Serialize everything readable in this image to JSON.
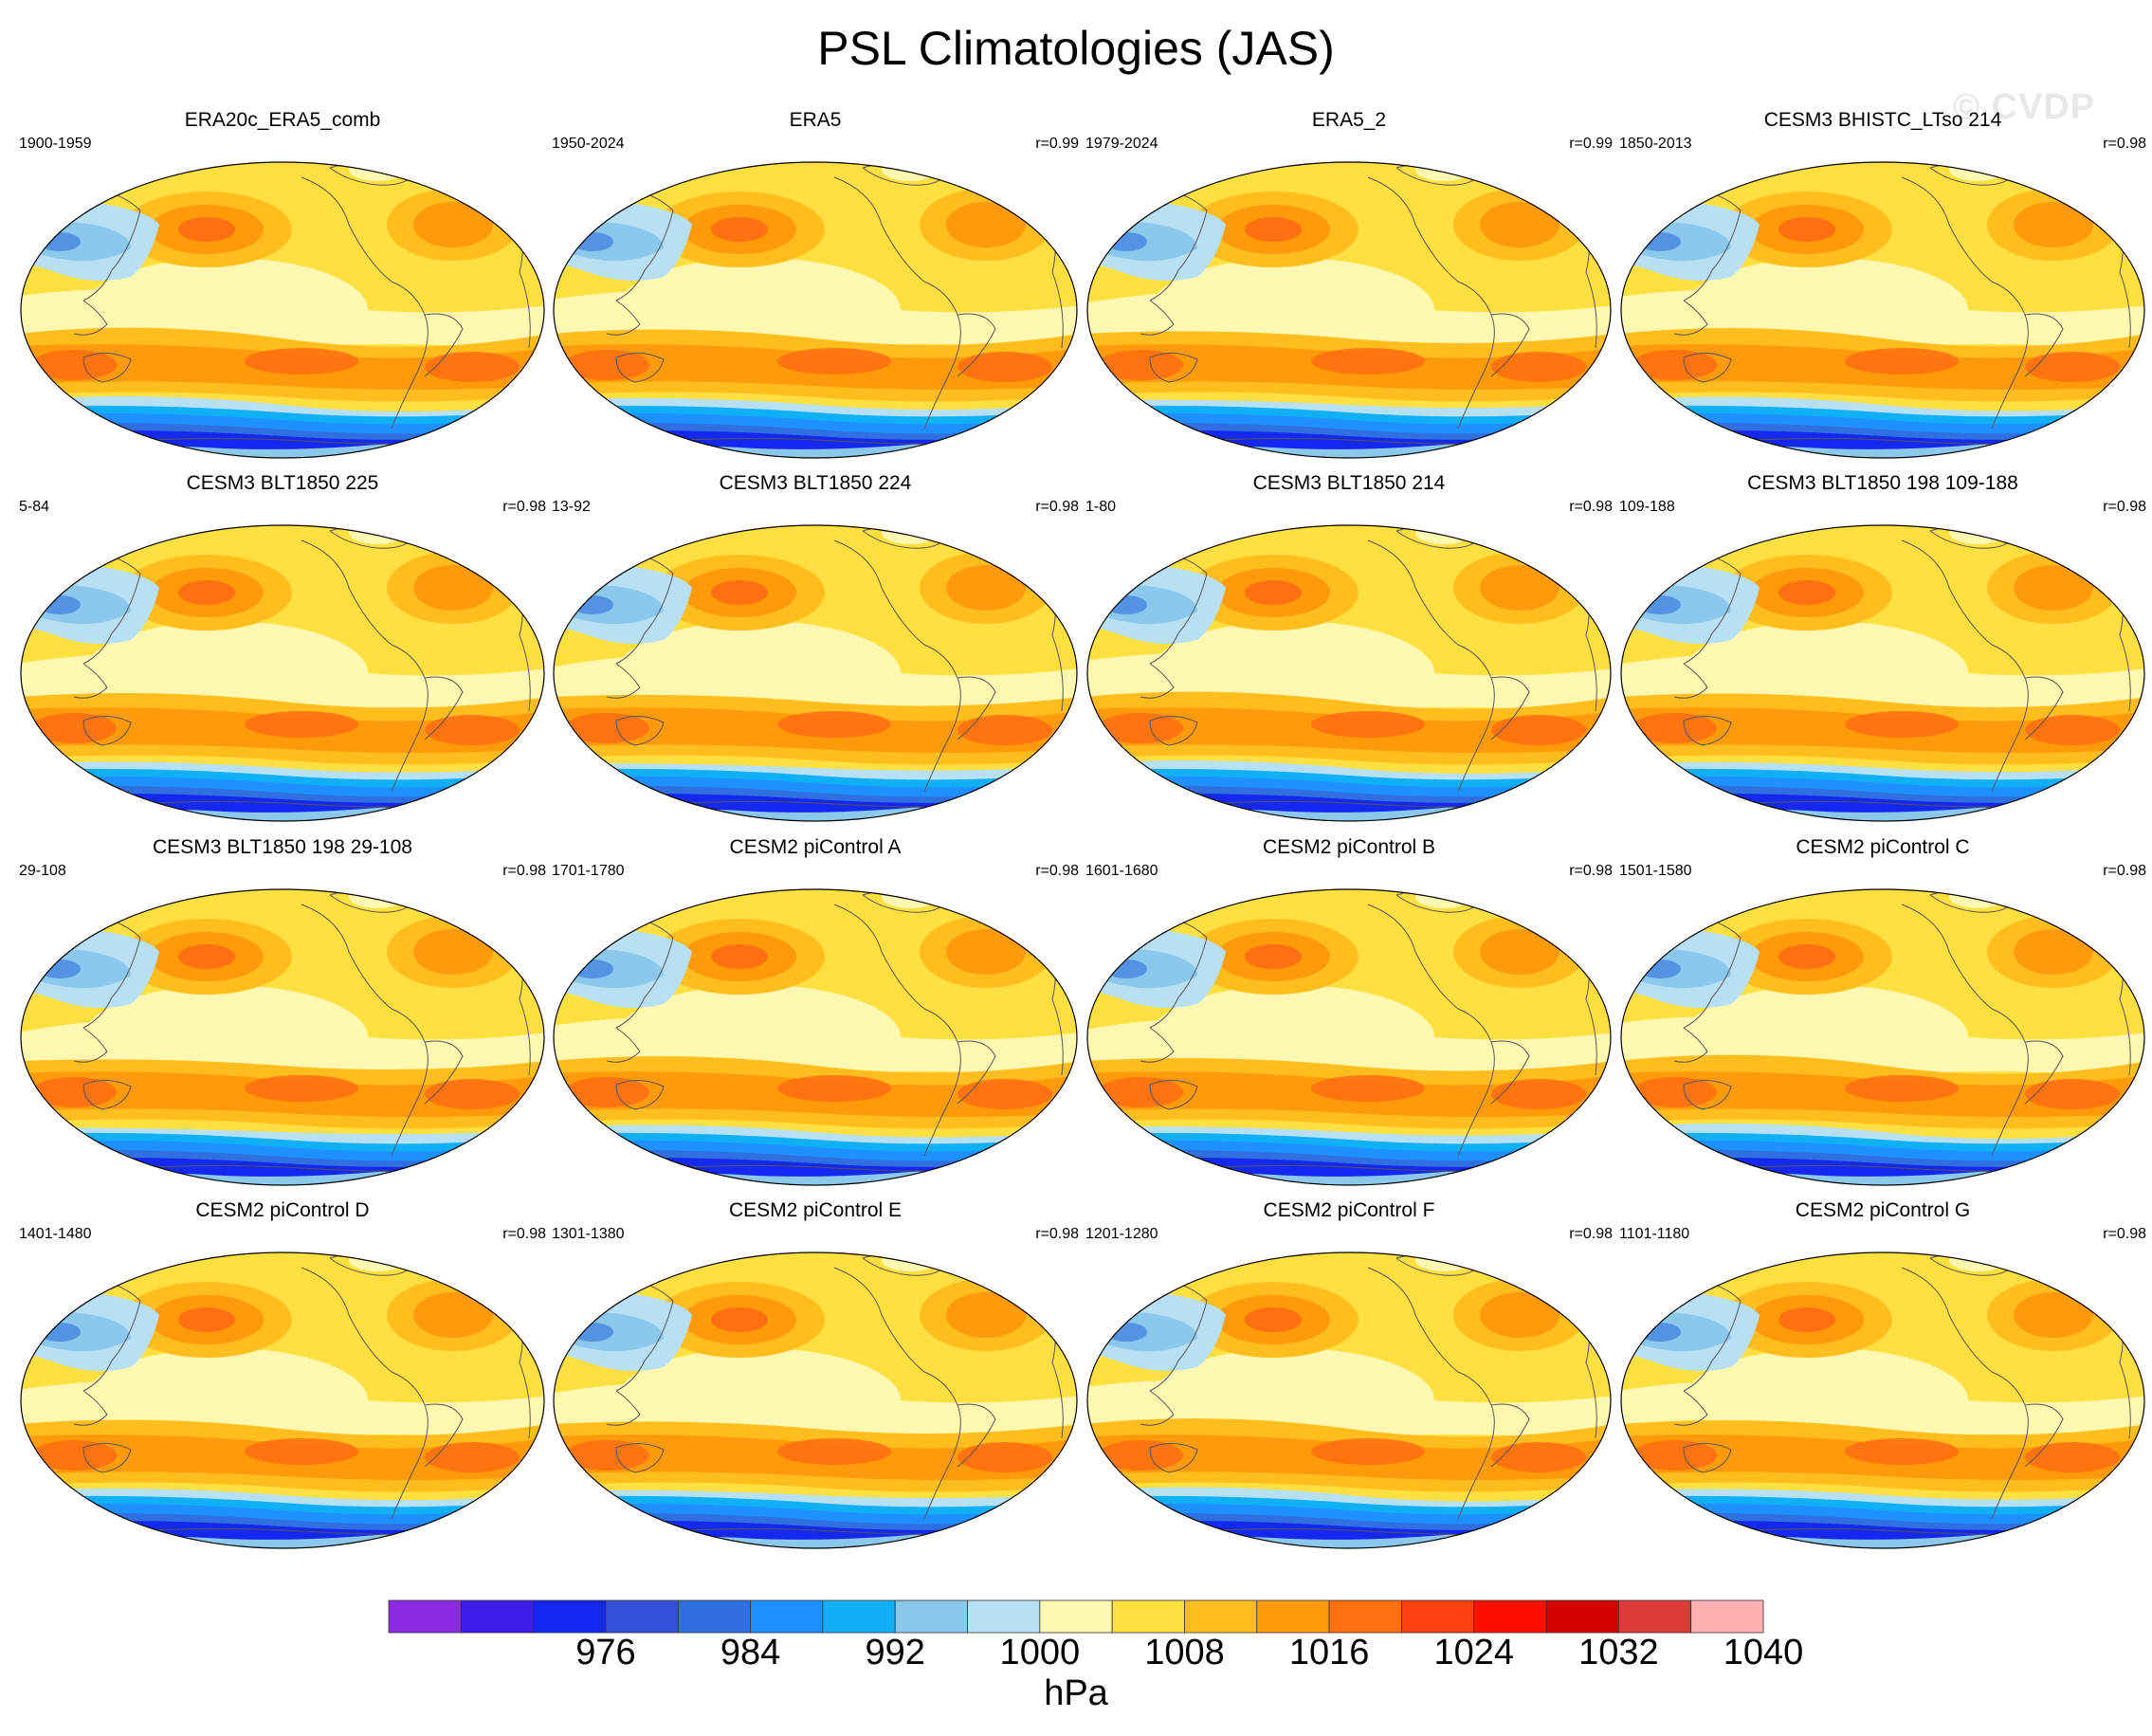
{
  "title": "PSL Climatologies (JAS)",
  "watermark": "© CVDP",
  "panels": [
    {
      "title": "ERA20c_ERA5_comb",
      "years": "1900-1959",
      "r": ""
    },
    {
      "title": "ERA5",
      "years": "1950-2024",
      "r": "r=0.99"
    },
    {
      "title": "ERA5_2",
      "years": "1979-2024",
      "r": "r=0.99"
    },
    {
      "title": "CESM3 BHISTC_LTso 214",
      "years": "1850-2013",
      "r": "r=0.98"
    },
    {
      "title": "CESM3 BLT1850 225",
      "years": "5-84",
      "r": "r=0.98"
    },
    {
      "title": "CESM3 BLT1850 224",
      "years": "13-92",
      "r": "r=0.98"
    },
    {
      "title": "CESM3 BLT1850 214",
      "years": "1-80",
      "r": "r=0.98"
    },
    {
      "title": "CESM3 BLT1850 198 109-188",
      "years": "109-188",
      "r": "r=0.98"
    },
    {
      "title": "CESM3 BLT1850 198 29-108",
      "years": "29-108",
      "r": "r=0.98"
    },
    {
      "title": "CESM2 piControl A",
      "years": "1701-1780",
      "r": "r=0.98"
    },
    {
      "title": "CESM2 piControl B",
      "years": "1601-1680",
      "r": "r=0.98"
    },
    {
      "title": "CESM2 piControl C",
      "years": "1501-1580",
      "r": "r=0.98"
    },
    {
      "title": "CESM2 piControl D",
      "years": "1401-1480",
      "r": "r=0.98"
    },
    {
      "title": "CESM2 piControl E",
      "years": "1301-1380",
      "r": "r=0.98"
    },
    {
      "title": "CESM2 piControl F",
      "years": "1201-1280",
      "r": "r=0.98"
    },
    {
      "title": "CESM2 piControl G",
      "years": "1101-1180",
      "r": "r=0.98"
    }
  ],
  "chart_data": {
    "type": "heatmap",
    "title": "PSL Climatologies (JAS)",
    "projection": "Robinson (Pacific-centered)",
    "colorbar": {
      "unit": "hPa",
      "tick_labels": [
        "976",
        "984",
        "992",
        "1000",
        "1008",
        "1016",
        "1024",
        "1032",
        "1040"
      ],
      "tick_values": [
        976,
        984,
        992,
        1000,
        1008,
        1016,
        1024,
        1032,
        1040
      ],
      "levels_min": 968,
      "levels_max": 1048,
      "level_step": 4,
      "colors": [
        "#8a2be2",
        "#3a1ee8",
        "#1428f0",
        "#3550d8",
        "#2f6fe0",
        "#1f90ff",
        "#0fb0f5",
        "#8cc8ec",
        "#b8e0f4",
        "#fff8b0",
        "#ffe040",
        "#ffbe1e",
        "#ff9a0a",
        "#ff7010",
        "#ff4010",
        "#ff1000",
        "#d40000",
        "#dd3a3a",
        "#ffb0b0"
      ]
    },
    "series": [
      {
        "name": "ERA20c_ERA5_comb",
        "period": "1900-1959",
        "pattern_correlation": null
      },
      {
        "name": "ERA5",
        "period": "1950-2024",
        "pattern_correlation": 0.99
      },
      {
        "name": "ERA5_2",
        "period": "1979-2024",
        "pattern_correlation": 0.99
      },
      {
        "name": "CESM3 BHISTC_LTso 214",
        "period": "1850-2013",
        "pattern_correlation": 0.98
      },
      {
        "name": "CESM3 BLT1850 225",
        "period": "5-84",
        "pattern_correlation": 0.98
      },
      {
        "name": "CESM3 BLT1850 224",
        "period": "13-92",
        "pattern_correlation": 0.98
      },
      {
        "name": "CESM3 BLT1850 214",
        "period": "1-80",
        "pattern_correlation": 0.98
      },
      {
        "name": "CESM3 BLT1850 198 109-188",
        "period": "109-188",
        "pattern_correlation": 0.98
      },
      {
        "name": "CESM3 BLT1850 198 29-108",
        "period": "29-108",
        "pattern_correlation": 0.98
      },
      {
        "name": "CESM2 piControl A",
        "period": "1701-1780",
        "pattern_correlation": 0.98
      },
      {
        "name": "CESM2 piControl B",
        "period": "1601-1680",
        "pattern_correlation": 0.98
      },
      {
        "name": "CESM2 piControl C",
        "period": "1501-1580",
        "pattern_correlation": 0.98
      },
      {
        "name": "CESM2 piControl D",
        "period": "1401-1480",
        "pattern_correlation": 0.98
      },
      {
        "name": "CESM2 piControl E",
        "period": "1301-1380",
        "pattern_correlation": 0.98
      },
      {
        "name": "CESM2 piControl F",
        "period": "1201-1280",
        "pattern_correlation": 0.98
      },
      {
        "name": "CESM2 piControl G",
        "period": "1101-1180",
        "pattern_correlation": 0.98
      }
    ]
  }
}
